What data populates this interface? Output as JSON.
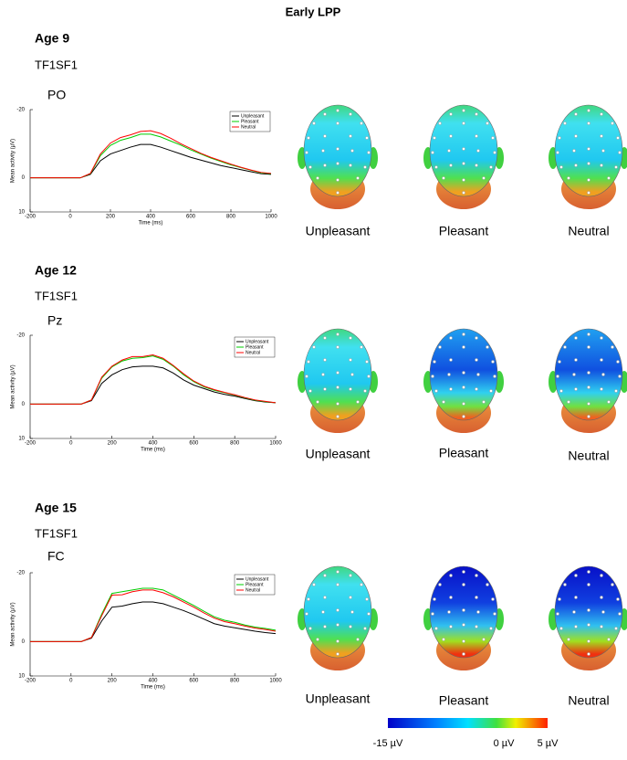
{
  "title": "Early LPP",
  "panels": [
    {
      "age": "Age 9",
      "condition": "TF1SF1",
      "topomap_labels": [
        "Unpleasant",
        "Pleasant",
        "Neutral"
      ]
    },
    {
      "age": "Age 12",
      "condition": "TF1SF1",
      "topomap_labels": [
        "Unpleasant",
        "Pleasant",
        "Neutral"
      ]
    },
    {
      "age": "Age 15",
      "condition": "TF1SF1",
      "topomap_labels": [
        "Unpleasant",
        "Pleasant",
        "Neutral"
      ]
    }
  ],
  "colorbar": {
    "labels": [
      "-15 µV",
      "0 µV",
      "5 µV"
    ]
  },
  "chart_data": [
    {
      "type": "line",
      "panel_label": "PO",
      "xlabel": "Time (ms)",
      "ylabel": "Mean activity (µV)",
      "x": [
        -200,
        -150,
        -100,
        -50,
        0,
        50,
        100,
        150,
        200,
        250,
        300,
        350,
        400,
        450,
        500,
        550,
        600,
        650,
        700,
        750,
        800,
        850,
        900,
        950,
        1000
      ],
      "xlim": [
        -200,
        1000
      ],
      "xticks": [
        -200,
        0,
        200,
        400,
        600,
        800,
        1000
      ],
      "ylim": [
        -20,
        10
      ],
      "yticks": [
        -20,
        0,
        10
      ],
      "y_inverted": true,
      "legend": "upper right",
      "series": [
        {
          "name": "Unpleasant",
          "color": "#000000",
          "values": [
            0,
            0,
            0,
            0,
            0,
            0,
            -1,
            -5,
            -7,
            -8,
            -9,
            -9.8,
            -9.8,
            -9,
            -8,
            -7,
            -6,
            -5.2,
            -4.4,
            -3.6,
            -3,
            -2.4,
            -1.8,
            -1.2,
            -1
          ]
        },
        {
          "name": "Pleasant",
          "color": "#00cc00",
          "values": [
            0,
            0,
            0,
            0,
            0,
            0,
            -1.2,
            -6.5,
            -9.5,
            -11,
            -11.8,
            -12.8,
            -12.8,
            -12,
            -10.8,
            -9.6,
            -8.2,
            -7,
            -5.8,
            -4.8,
            -3.8,
            -3,
            -2.2,
            -1.5,
            -1.2
          ]
        },
        {
          "name": "Neutral",
          "color": "#ff0000",
          "values": [
            0,
            0,
            0,
            0,
            0,
            0,
            -1.3,
            -7,
            -10.2,
            -11.8,
            -12.6,
            -13.6,
            -13.8,
            -13,
            -11.6,
            -10,
            -8.6,
            -7.2,
            -6,
            -5,
            -4,
            -3.1,
            -2.3,
            -1.6,
            -1.3
          ]
        }
      ]
    },
    {
      "type": "line",
      "panel_label": "Pz",
      "xlabel": "Time (ms)",
      "ylabel": "Mean activity (µV)",
      "x": [
        -200,
        -150,
        -100,
        -50,
        0,
        50,
        100,
        150,
        200,
        250,
        300,
        350,
        400,
        450,
        500,
        550,
        600,
        650,
        700,
        750,
        800,
        850,
        900,
        950,
        1000
      ],
      "xlim": [
        -200,
        1000
      ],
      "xticks": [
        -200,
        0,
        200,
        400,
        600,
        800,
        1000
      ],
      "ylim": [
        -20,
        10
      ],
      "yticks": [
        -20,
        0,
        10
      ],
      "y_inverted": true,
      "legend": "upper right",
      "series": [
        {
          "name": "Unpleasant",
          "color": "#000000",
          "values": [
            0,
            0,
            0,
            0,
            0,
            0,
            -1,
            -6,
            -8.5,
            -10,
            -10.8,
            -11,
            -11,
            -10.5,
            -9,
            -7,
            -5.5,
            -4.5,
            -3.5,
            -2.8,
            -2.3,
            -1.6,
            -1,
            -0.6,
            -0.4
          ]
        },
        {
          "name": "Pleasant",
          "color": "#00cc00",
          "values": [
            0,
            0,
            0,
            0,
            0,
            0,
            -1.2,
            -7.5,
            -10.8,
            -12.5,
            -13.3,
            -13.5,
            -14,
            -13,
            -11,
            -8.5,
            -6.5,
            -5,
            -4,
            -3.3,
            -2.6,
            -1.8,
            -1.1,
            -0.7,
            -0.4
          ]
        },
        {
          "name": "Neutral",
          "color": "#ff0000",
          "values": [
            0,
            0,
            0,
            0,
            0,
            0,
            -1.2,
            -7.8,
            -11,
            -12.8,
            -13.8,
            -13.8,
            -14.3,
            -13.3,
            -11.2,
            -8.8,
            -6.7,
            -5.2,
            -4.2,
            -3.4,
            -2.7,
            -1.9,
            -1.2,
            -0.8,
            -0.4
          ]
        }
      ]
    },
    {
      "type": "line",
      "panel_label": "FC",
      "xlabel": "Time (ms)",
      "ylabel": "Mean activity (µV)",
      "x": [
        -200,
        -150,
        -100,
        -50,
        0,
        50,
        100,
        150,
        200,
        250,
        300,
        350,
        400,
        450,
        500,
        550,
        600,
        650,
        700,
        750,
        800,
        850,
        900,
        950,
        1000
      ],
      "xlim": [
        -200,
        1000
      ],
      "xticks": [
        -200,
        0,
        200,
        400,
        600,
        800,
        1000
      ],
      "ylim": [
        -20,
        10
      ],
      "yticks": [
        -20,
        0,
        10
      ],
      "y_inverted": true,
      "legend": "upper right",
      "series": [
        {
          "name": "Unpleasant",
          "color": "#000000",
          "values": [
            0,
            0,
            0,
            0,
            0,
            0,
            -1,
            -6,
            -10,
            -10.3,
            -11,
            -11.5,
            -11.5,
            -11,
            -10,
            -9,
            -7.8,
            -6.5,
            -5.2,
            -4.5,
            -4,
            -3.5,
            -3,
            -2.6,
            -2.3
          ]
        },
        {
          "name": "Pleasant",
          "color": "#00cc00",
          "values": [
            0,
            0,
            0,
            0,
            0,
            0,
            -1.2,
            -8,
            -14,
            -14.5,
            -15,
            -15.5,
            -15.5,
            -15,
            -13.5,
            -12,
            -10.5,
            -8.8,
            -7.2,
            -6.2,
            -5.6,
            -4.8,
            -4.2,
            -3.8,
            -3.3
          ]
        },
        {
          "name": "Neutral",
          "color": "#ff0000",
          "values": [
            0,
            0,
            0,
            0,
            0,
            0,
            -1.2,
            -7.5,
            -13.5,
            -13.6,
            -14.5,
            -15,
            -15,
            -14.2,
            -13,
            -11.5,
            -10,
            -8.3,
            -6.8,
            -5.8,
            -5.2,
            -4.5,
            -3.9,
            -3.5,
            -3
          ]
        }
      ]
    }
  ]
}
